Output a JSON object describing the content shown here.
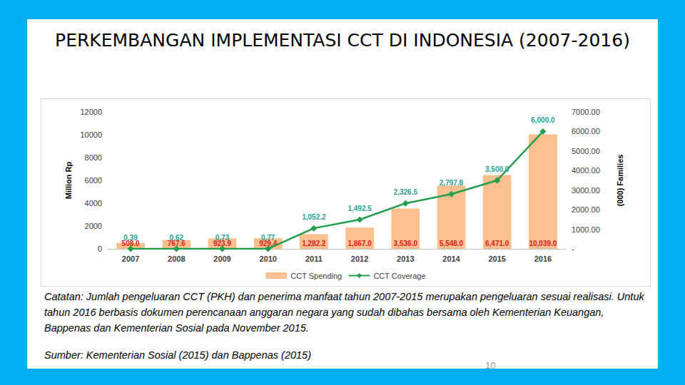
{
  "chart_data": {
    "type": "bar",
    "title": "PERKEMBANGAN IMPLEMENTASI CCT DI INDONESIA (2007-2016)",
    "categories": [
      "2007",
      "2008",
      "2009",
      "2010",
      "2011",
      "2012",
      "2013",
      "2014",
      "2015",
      "2016"
    ],
    "series": [
      {
        "name": "CCT Spending",
        "type": "bar",
        "color": "#fac08f",
        "values": [
          508.0,
          767.6,
          923.9,
          929.4,
          1282.2,
          1867.0,
          3536.0,
          5548.0,
          6471.0,
          10039.0
        ],
        "value_labels": [
          "508.0",
          "767.6",
          "923.9",
          "929.4",
          "1,282.2",
          "1,867.0",
          "3,536.0",
          "5,548.0",
          "6,471.0",
          "10,039.0"
        ]
      },
      {
        "name": "CCT Coverage",
        "type": "line",
        "axis": "y2",
        "color": "#1f9e4b",
        "marker": "diamond",
        "values": [
          0.39,
          0.62,
          0.73,
          0.77,
          1052.2,
          1492.5,
          2326.5,
          2797.8,
          3500.0,
          6000.0
        ],
        "value_labels": [
          "0.39",
          "0.62",
          "0.73",
          "0.77",
          "1,052.2",
          "1,492.5",
          "2,326.5",
          "2,797.8",
          "3,500.0",
          "6,000.0"
        ]
      }
    ],
    "ylabel": "Million Rp",
    "y2label": "(000) Families",
    "ylim": [
      0,
      12000
    ],
    "yticks": [
      0,
      2000,
      4000,
      6000,
      8000,
      10000,
      12000
    ],
    "y2lim": [
      0,
      7000
    ],
    "y2ticks": [
      {
        "value": 0,
        "label": "-"
      },
      {
        "value": 1000,
        "label": "1000.00"
      },
      {
        "value": 2000,
        "label": "2000.00"
      },
      {
        "value": 3000,
        "label": "3000.00"
      },
      {
        "value": 4000,
        "label": "4000.00"
      },
      {
        "value": 5000,
        "label": "5000.00"
      },
      {
        "value": 6000,
        "label": "6000.00"
      },
      {
        "value": 7000,
        "label": "7000.00"
      }
    ],
    "grid": false,
    "legend": "bottom",
    "data_labels": true,
    "annotations": [
      "Catatan: Jumlah pengeluaran CCT (PKH) dan penerima manfaat tahun 2007-2015 merupakan pengeluaran sesuai realisasi.  Untuk tahun 2016 berbasis dokumen perencanaan anggaran negara yang sudah dibahas bersama oleh Kementerian Keuangan, Bappenas dan Kementerian Sosial pada November 2015.",
      "Sumber: Kementerian Sosial (2015) dan Bappenas (2015)",
      "10"
    ]
  }
}
